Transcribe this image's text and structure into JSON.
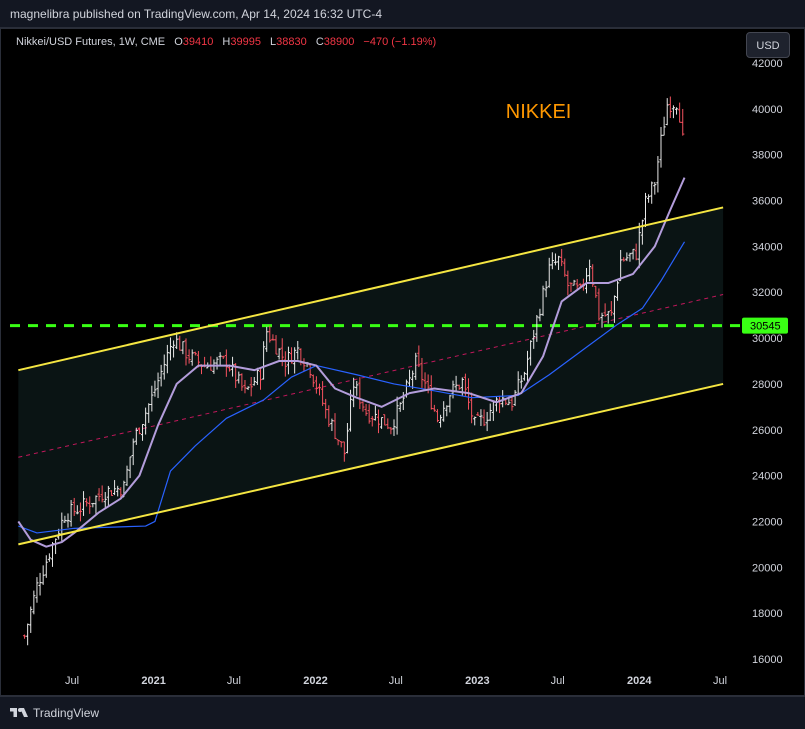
{
  "header": {
    "published": "magnelibra published on TradingView.com, Apr 14, 2024 16:32 UTC-4"
  },
  "legend": {
    "symbol": "Nikkei/USD Futures, 1W, CME",
    "open_label": "O",
    "open": "39410",
    "high_label": "H",
    "high": "39995",
    "low_label": "L",
    "low": "38830",
    "close_label": "C",
    "close": "38900",
    "change": "−470 (−1.19%)"
  },
  "toolbar": {
    "currency_label": "USD"
  },
  "footer": {
    "brand": "TradingView"
  },
  "colors": {
    "background": "#000000",
    "up_candle": "#e8e8e8",
    "down_candle": "#f7525f",
    "channel": "#f5e642",
    "channel_fill": "#0a1414",
    "midline": "#c2185b",
    "support": "#39ff14",
    "ma_fast": "#b39ddb",
    "ma_slow": "#2962ff",
    "annotation": "#ff9800"
  },
  "chart_data": {
    "type": "candlestick",
    "instrument": "Nikkei/USD Futures",
    "interval": "1W",
    "exchange": "CME",
    "y_axis": {
      "range": [
        15500,
        42600
      ],
      "ticks": [
        42000,
        40000,
        38000,
        36000,
        34000,
        32000,
        30000,
        28000,
        26000,
        24000,
        22000,
        20000,
        18000,
        16000
      ]
    },
    "x_axis": {
      "ticks": [
        {
          "label": "Jul",
          "date": "2020-07"
        },
        {
          "label": "2021",
          "date": "2021-01"
        },
        {
          "label": "Jul",
          "date": "2021-07"
        },
        {
          "label": "2022",
          "date": "2022-01"
        },
        {
          "label": "Jul",
          "date": "2022-07"
        },
        {
          "label": "2023",
          "date": "2023-01"
        },
        {
          "label": "Jul",
          "date": "2023-07"
        },
        {
          "label": "2024",
          "date": "2024-01"
        },
        {
          "label": "Jul",
          "date": "2024-07"
        }
      ]
    },
    "last_ohlc": {
      "open": 39410,
      "high": 39995,
      "low": 38830,
      "close": 38900
    },
    "price_path": [
      [
        "2020-03-16",
        17000
      ],
      [
        "2020-04-13",
        19200
      ],
      [
        "2020-05-18",
        21000
      ],
      [
        "2020-06-15",
        22300
      ],
      [
        "2020-07-20",
        22600
      ],
      [
        "2020-09-14",
        23300
      ],
      [
        "2020-10-26",
        23500
      ],
      [
        "2020-11-16",
        25500
      ],
      [
        "2020-12-28",
        27400
      ],
      [
        "2021-02-15",
        30000
      ],
      [
        "2021-03-22",
        29200
      ],
      [
        "2021-04-26",
        28800
      ],
      [
        "2021-06-14",
        29000
      ],
      [
        "2021-07-26",
        27600
      ],
      [
        "2021-08-30",
        28500
      ],
      [
        "2021-09-13",
        30300
      ],
      [
        "2021-10-25",
        29000
      ],
      [
        "2021-11-22",
        29500
      ],
      [
        "2021-12-20",
        28700
      ],
      [
        "2022-01-24",
        26800
      ],
      [
        "2022-03-07",
        25000
      ],
      [
        "2022-03-28",
        28000
      ],
      [
        "2022-04-25",
        26800
      ],
      [
        "2022-06-20",
        26200
      ],
      [
        "2022-07-11",
        27000
      ],
      [
        "2022-08-15",
        28900
      ],
      [
        "2022-09-05",
        28000
      ],
      [
        "2022-10-03",
        26500
      ],
      [
        "2022-10-31",
        27600
      ],
      [
        "2022-11-28",
        28100
      ],
      [
        "2022-12-26",
        26200
      ],
      [
        "2023-01-16",
        26500
      ],
      [
        "2023-02-20",
        27400
      ],
      [
        "2023-03-20",
        27200
      ],
      [
        "2023-04-17",
        28500
      ],
      [
        "2023-05-15",
        30800
      ],
      [
        "2023-06-12",
        33000
      ],
      [
        "2023-07-03",
        33400
      ],
      [
        "2023-07-24",
        32300
      ],
      [
        "2023-08-21",
        32000
      ],
      [
        "2023-09-11",
        33300
      ],
      [
        "2023-10-02",
        31000
      ],
      [
        "2023-10-30",
        31000
      ],
      [
        "2023-11-20",
        33400
      ],
      [
        "2023-12-25",
        33700
      ],
      [
        "2024-01-15",
        35900
      ],
      [
        "2024-02-05",
        36800
      ],
      [
        "2024-02-19",
        38600
      ],
      [
        "2024-03-04",
        40200
      ],
      [
        "2024-03-25",
        40300
      ],
      [
        "2024-04-12",
        38900
      ]
    ],
    "ma_fast_path": [
      [
        "2020-03-02",
        22000
      ],
      [
        "2020-03-30",
        21200
      ],
      [
        "2020-05-04",
        20900
      ],
      [
        "2020-06-08",
        21100
      ],
      [
        "2020-07-06",
        21500
      ],
      [
        "2020-08-31",
        22400
      ],
      [
        "2020-10-19",
        23000
      ],
      [
        "2020-11-30",
        24000
      ],
      [
        "2021-01-11",
        26200
      ],
      [
        "2021-02-22",
        28000
      ],
      [
        "2021-04-12",
        28800
      ],
      [
        "2021-06-21",
        28800
      ],
      [
        "2021-08-16",
        28600
      ],
      [
        "2021-10-11",
        29000
      ],
      [
        "2021-11-22",
        29000
      ],
      [
        "2022-01-03",
        28800
      ],
      [
        "2022-02-14",
        27800
      ],
      [
        "2022-04-04",
        27400
      ],
      [
        "2022-05-30",
        27000
      ],
      [
        "2022-08-01",
        27600
      ],
      [
        "2022-09-26",
        27800
      ],
      [
        "2022-12-12",
        27600
      ],
      [
        "2023-02-13",
        27200
      ],
      [
        "2023-04-10",
        27600
      ],
      [
        "2023-05-29",
        29200
      ],
      [
        "2023-07-10",
        31600
      ],
      [
        "2023-09-04",
        32400
      ],
      [
        "2023-10-23",
        32400
      ],
      [
        "2023-12-18",
        32800
      ],
      [
        "2024-02-05",
        34000
      ],
      [
        "2024-03-11",
        35600
      ],
      [
        "2024-04-12",
        37000
      ]
    ],
    "ma_slow_path": [
      [
        "2020-03-02",
        21800
      ],
      [
        "2020-04-13",
        21500
      ],
      [
        "2020-07-06",
        21700
      ],
      [
        "2020-12-14",
        21800
      ],
      [
        "2021-01-04",
        22000
      ],
      [
        "2021-02-08",
        24200
      ],
      [
        "2021-04-05",
        25300
      ],
      [
        "2021-06-14",
        26500
      ],
      [
        "2021-09-06",
        27300
      ],
      [
        "2021-11-08",
        28300
      ],
      [
        "2022-01-03",
        28800
      ],
      [
        "2022-04-04",
        28400
      ],
      [
        "2022-06-27",
        28000
      ],
      [
        "2022-09-26",
        27700
      ],
      [
        "2022-12-19",
        27400
      ],
      [
        "2023-04-03",
        27500
      ],
      [
        "2023-06-12",
        28400
      ],
      [
        "2023-08-28",
        29500
      ],
      [
        "2023-11-13",
        30600
      ],
      [
        "2024-01-08",
        31300
      ],
      [
        "2024-02-19",
        32500
      ],
      [
        "2024-04-12",
        34200
      ]
    ],
    "channel_upper": [
      [
        "2020-03-02",
        28600
      ],
      [
        "2024-07-08",
        35700
      ]
    ],
    "channel_lower": [
      [
        "2020-03-02",
        21000
      ],
      [
        "2024-07-08",
        28000
      ]
    ],
    "channel_mid": [
      [
        "2020-03-02",
        24800
      ],
      [
        "2024-07-08",
        31900
      ]
    ],
    "support_level": 30545,
    "support_label": "30545",
    "annotations": [
      {
        "text": "NIKKEI",
        "date": "2023-03-06",
        "price": 40000
      }
    ]
  }
}
